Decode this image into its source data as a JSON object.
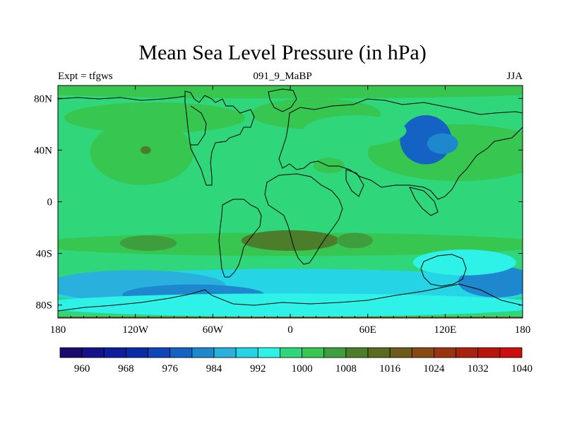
{
  "figure": {
    "title": "Mean Sea Level Pressure (in hPa)",
    "left_label": "Expt = tfgws",
    "center_label": "091_9_MaBP",
    "right_label": "JJA"
  },
  "chart_data": {
    "type": "heatmap",
    "title": "Mean Sea Level Pressure (in hPa)",
    "variable": "Mean Sea Level Pressure",
    "units": "hPa",
    "season": "JJA",
    "x_ticks": [
      {
        "lon": -180,
        "label": "180"
      },
      {
        "lon": -120,
        "label": "120W"
      },
      {
        "lon": -60,
        "label": "60W"
      },
      {
        "lon": 0,
        "label": "0"
      },
      {
        "lon": 60,
        "label": "60E"
      },
      {
        "lon": 120,
        "label": "120E"
      },
      {
        "lon": 180,
        "label": "180"
      }
    ],
    "y_ticks": [
      {
        "lat": 80,
        "label": "80N"
      },
      {
        "lat": 40,
        "label": "40N"
      },
      {
        "lat": 0,
        "label": "0"
      },
      {
        "lat": -40,
        "label": "40S"
      },
      {
        "lat": -80,
        "label": "80S"
      }
    ],
    "xlim": [
      -180,
      180
    ],
    "ylim": [
      -90,
      90
    ],
    "colorbar": {
      "levels": [
        960,
        964,
        968,
        972,
        976,
        980,
        984,
        988,
        992,
        996,
        1000,
        1004,
        1008,
        1012,
        1016,
        1020,
        1024,
        1028,
        1032,
        1036,
        1040
      ],
      "labels": [
        "960",
        "968",
        "976",
        "984",
        "992",
        "1000",
        "1008",
        "1016",
        "1024",
        "1032",
        "1040"
      ],
      "colors": [
        "#1a0a6b",
        "#14138a",
        "#0f1c9b",
        "#0a2aa8",
        "#0e45b8",
        "#1463c4",
        "#1e88cf",
        "#2ab0dc",
        "#25d5e6",
        "#2ef2e8",
        "#2fd67a",
        "#37c650",
        "#3e9e3d",
        "#4b7d2a",
        "#5a6a1e",
        "#6e5a1a",
        "#874a14",
        "#983410",
        "#a8220d",
        "#b8160c",
        "#cc0e0e"
      ]
    },
    "field": {
      "background": 1002,
      "anomalies": [
        {
          "lon": 0,
          "lat": 86,
          "rlon": 220,
          "rlat": 6,
          "value": 1005
        },
        {
          "lon": -105,
          "lat": 65,
          "rlon": 70,
          "rlat": 12,
          "value": 1005
        },
        {
          "lon": -115,
          "lat": 38,
          "rlon": 40,
          "rlat": 25,
          "value": 1006
        },
        {
          "lon": 130,
          "lat": 38,
          "rlon": 70,
          "rlat": 22,
          "value": 1006
        },
        {
          "lon": 175,
          "lat": 40,
          "rlon": 25,
          "rlat": 15,
          "value": 1005
        },
        {
          "lon": 20,
          "lat": 68,
          "rlon": 50,
          "rlat": 12,
          "value": 1005
        },
        {
          "lon": 30,
          "lat": 28,
          "rlon": 12,
          "rlat": 6,
          "value": 1005
        },
        {
          "lon": -112,
          "lat": 40,
          "rlon": 4,
          "rlat": 3,
          "value": 1014
        },
        {
          "lon": 0,
          "lat": -33,
          "rlon": 200,
          "rlat": 9,
          "value": 1006
        },
        {
          "lon": -110,
          "lat": -32,
          "rlon": 22,
          "rlat": 6,
          "value": 1011
        },
        {
          "lon": 0,
          "lat": -30,
          "rlon": 38,
          "rlat": 8,
          "value": 1012
        },
        {
          "lon": 50,
          "lat": -30,
          "rlon": 14,
          "rlat": 6,
          "value": 1011
        },
        {
          "lon": 105,
          "lat": 48,
          "rlon": 20,
          "rlat": 19,
          "value": 983
        },
        {
          "lon": 118,
          "lat": 45,
          "rlon": 12,
          "rlat": 8,
          "value": 986
        },
        {
          "lon": 50,
          "lat": 55,
          "rlon": 40,
          "rlat": 12,
          "value": 1000
        },
        {
          "lon": 0,
          "lat": -67,
          "rlon": 200,
          "rlat": 15,
          "value": 993
        },
        {
          "lon": -120,
          "lat": -65,
          "rlon": 70,
          "rlat": 12,
          "value": 988
        },
        {
          "lon": -75,
          "lat": -72,
          "rlon": 55,
          "rlat": 8,
          "value": 986
        },
        {
          "lon": 160,
          "lat": -62,
          "rlon": 30,
          "rlat": 12,
          "value": 986
        },
        {
          "lon": 135,
          "lat": -47,
          "rlon": 40,
          "rlat": 10,
          "value": 997
        },
        {
          "lon": 0,
          "lat": -80,
          "rlon": 200,
          "rlat": 9,
          "value": 999
        }
      ]
    }
  }
}
